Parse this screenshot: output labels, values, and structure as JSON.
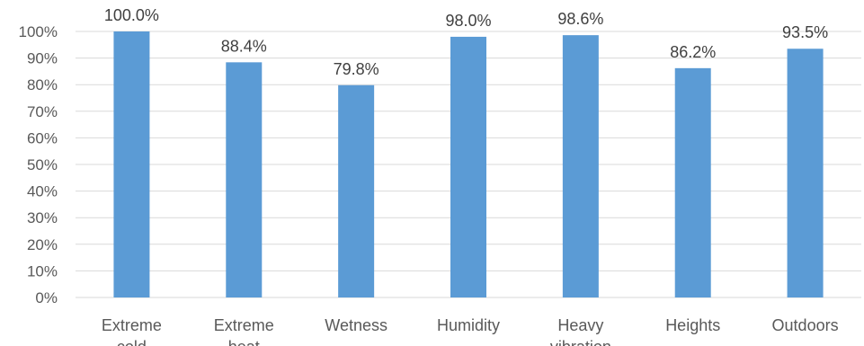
{
  "chart_data": {
    "type": "bar",
    "categories": [
      "Extreme cold",
      "Extreme heat",
      "Wetness",
      "Humidity",
      "Heavy vibration",
      "Heights",
      "Outdoors"
    ],
    "values": [
      100.0,
      88.4,
      79.8,
      98.0,
      98.6,
      86.2,
      93.5
    ],
    "data_labels": [
      "100.0%",
      "88.4%",
      "79.8%",
      "98.0%",
      "98.6%",
      "86.2%",
      "93.5%"
    ],
    "y_ticks": [
      "0%",
      "10%",
      "20%",
      "30%",
      "40%",
      "50%",
      "60%",
      "70%",
      "80%",
      "90%",
      "100%"
    ],
    "ylim": [
      0,
      100
    ],
    "grid": true,
    "legend": "none",
    "bar_color": "#5b9bd5"
  }
}
